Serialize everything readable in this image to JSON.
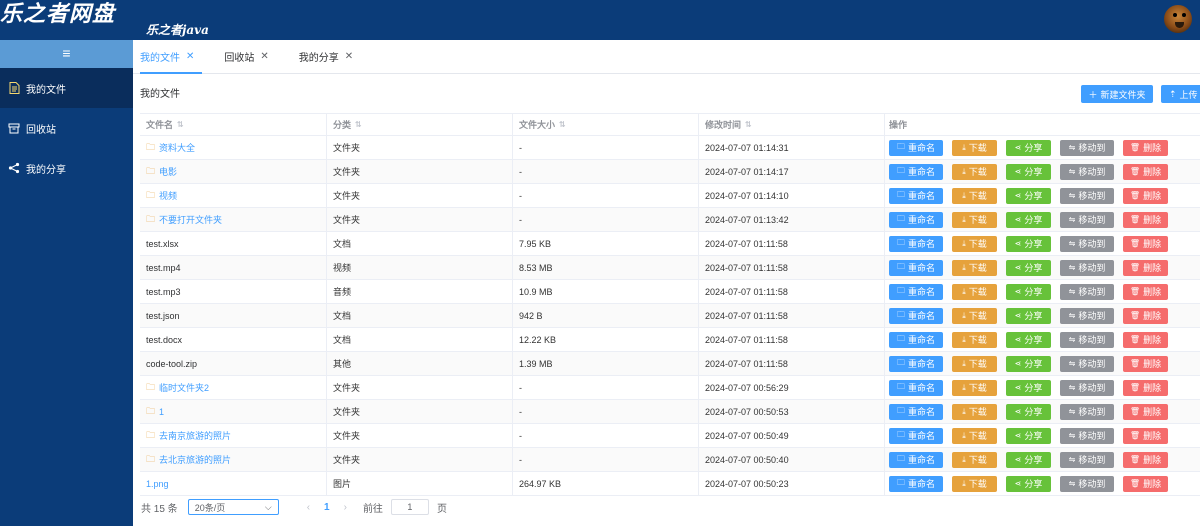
{
  "header": {
    "brand_title": "乐之者网盘",
    "brand_sub": "乐之者java"
  },
  "sidebar": {
    "toggle_icon": "≡",
    "items": [
      {
        "label": "我的文件",
        "icon": "document-icon",
        "active": true
      },
      {
        "label": "回收站",
        "icon": "trash-box-icon",
        "active": false
      },
      {
        "label": "我的分享",
        "icon": "share-icon",
        "active": false
      }
    ]
  },
  "tabs": [
    {
      "label": "我的文件",
      "active": true
    },
    {
      "label": "回收站",
      "active": false
    },
    {
      "label": "我的分享",
      "active": false
    }
  ],
  "page": {
    "heading": "我的文件",
    "new_folder_label": "新建文件夹",
    "upload_label": "上传"
  },
  "table": {
    "headers": {
      "name": "文件名",
      "type": "分类",
      "size": "文件大小",
      "time": "修改时间",
      "ops": "操作"
    },
    "ops_labels": {
      "rename": "重命名",
      "download": "下载",
      "share": "分享",
      "move": "移动到",
      "delete": "删除"
    },
    "rows": [
      {
        "name": "资料大全",
        "is_folder": true,
        "type": "文件夹",
        "size": "-",
        "time": "2024-07-07 01:14:31"
      },
      {
        "name": "电影",
        "is_folder": true,
        "type": "文件夹",
        "size": "-",
        "time": "2024-07-07 01:14:17"
      },
      {
        "name": "视频",
        "is_folder": true,
        "type": "文件夹",
        "size": "-",
        "time": "2024-07-07 01:14:10"
      },
      {
        "name": "不要打开文件夹",
        "is_folder": true,
        "type": "文件夹",
        "size": "-",
        "time": "2024-07-07 01:13:42"
      },
      {
        "name": "test.xlsx",
        "is_folder": false,
        "type": "文档",
        "size": "7.95 KB",
        "time": "2024-07-07 01:11:58"
      },
      {
        "name": "test.mp4",
        "is_folder": false,
        "type": "视频",
        "size": "8.53 MB",
        "time": "2024-07-07 01:11:58"
      },
      {
        "name": "test.mp3",
        "is_folder": false,
        "type": "音频",
        "size": "10.9 MB",
        "time": "2024-07-07 01:11:58"
      },
      {
        "name": "test.json",
        "is_folder": false,
        "type": "文档",
        "size": "942 B",
        "time": "2024-07-07 01:11:58"
      },
      {
        "name": "test.docx",
        "is_folder": false,
        "type": "文档",
        "size": "12.22 KB",
        "time": "2024-07-07 01:11:58"
      },
      {
        "name": "code-tool.zip",
        "is_folder": false,
        "type": "其他",
        "size": "1.39 MB",
        "time": "2024-07-07 01:11:58"
      },
      {
        "name": "临时文件夹2",
        "is_folder": true,
        "type": "文件夹",
        "size": "-",
        "time": "2024-07-07 00:56:29"
      },
      {
        "name": "1",
        "is_folder": true,
        "type": "文件夹",
        "size": "-",
        "time": "2024-07-07 00:50:53"
      },
      {
        "name": "去南京旅游的照片",
        "is_folder": true,
        "type": "文件夹",
        "size": "-",
        "time": "2024-07-07 00:50:49"
      },
      {
        "name": "去北京旅游的照片",
        "is_folder": true,
        "type": "文件夹",
        "size": "-",
        "time": "2024-07-07 00:50:40"
      },
      {
        "name": "1.png",
        "is_folder": false,
        "link": true,
        "type": "图片",
        "size": "264.97 KB",
        "time": "2024-07-07 00:50:23"
      }
    ]
  },
  "pagination": {
    "total": "共 15 条",
    "page_size": "20条/页",
    "current_page": "1",
    "goto_label": "前往",
    "goto_value": "1",
    "page_suffix": "页"
  },
  "colors": {
    "header_bg": "#0b3c79",
    "primary": "#409eff",
    "warning": "#e6a23c",
    "success": "#67c23a",
    "info": "#909399",
    "danger": "#f56c6c"
  }
}
